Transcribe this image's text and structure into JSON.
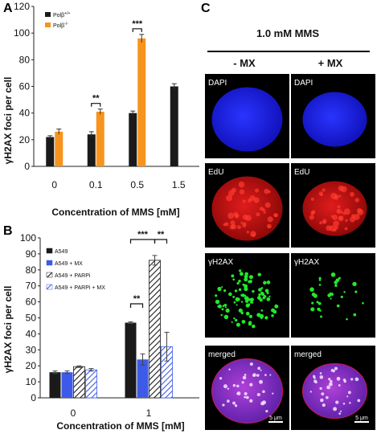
{
  "panel_labels": {
    "a": "A",
    "b": "B",
    "c": "C"
  },
  "chart_data": [
    {
      "type": "bar",
      "panel": "A",
      "categories": [
        "0",
        "0.1",
        "0.5",
        "1.5"
      ],
      "series": [
        {
          "name": "Polβ+/+",
          "color": "#1a1a1a",
          "values": [
            22,
            24,
            40,
            60
          ],
          "errors": [
            1,
            2,
            1.5,
            2
          ]
        },
        {
          "name": "Polβ-/-",
          "color": "#f7941d",
          "values": [
            26,
            41,
            96,
            null
          ],
          "errors": [
            2,
            2,
            3,
            null
          ]
        }
      ],
      "xlabel": "Concentration of MMS [mM]",
      "ylabel": "γH2AX foci per cell",
      "ylim": [
        0,
        120
      ],
      "yticks": [
        0,
        20,
        40,
        60,
        80,
        100,
        120
      ],
      "grid": false,
      "legend": "top-left",
      "annotations": [
        {
          "category": "0.1",
          "text": "**"
        },
        {
          "category": "0.5",
          "text": "***"
        }
      ]
    },
    {
      "type": "bar",
      "panel": "B",
      "categories": [
        "0",
        "1"
      ],
      "series": [
        {
          "name": "A549",
          "color": "#1a1a1a",
          "pattern": "solid",
          "values": [
            16,
            47
          ],
          "errors": [
            0.8,
            0.5
          ]
        },
        {
          "name": "A549 + MX",
          "color": "#3d5be8",
          "pattern": "solid",
          "values": [
            16,
            24
          ],
          "errors": [
            0.8,
            3.5
          ]
        },
        {
          "name": "A549 + PARPi",
          "color": "#1a1a1a",
          "pattern": "hatched",
          "values": [
            19.5,
            86
          ],
          "errors": [
            0.5,
            3
          ]
        },
        {
          "name": "A549 + PARPi + MX",
          "color": "#3d5be8",
          "pattern": "hatched",
          "values": [
            17.5,
            32
          ],
          "errors": [
            0.8,
            9
          ]
        }
      ],
      "xlabel": "Concentration of MMS [mM]",
      "ylabel": "γH2AX foci per cell",
      "ylim": [
        0,
        100
      ],
      "yticks": [
        0,
        10,
        20,
        30,
        40,
        50,
        60,
        70,
        80,
        90,
        100
      ],
      "grid": false,
      "legend": "top-left",
      "annotations": [
        {
          "from": "A549",
          "to": "A549 + MX",
          "text": "**"
        },
        {
          "from": "A549",
          "to": "A549 + PARPi",
          "text": "***"
        },
        {
          "from": "A549 + PARPi",
          "to": "A549 + PARPi + MX",
          "text": "**"
        }
      ]
    }
  ],
  "panel_c": {
    "title": "1.0 mM MMS",
    "col_headers": [
      "- MX",
      "+ MX"
    ],
    "rows": [
      "DAPI",
      "EdU",
      "γH2AX",
      "merged"
    ],
    "scale_bar": "5 μm"
  }
}
